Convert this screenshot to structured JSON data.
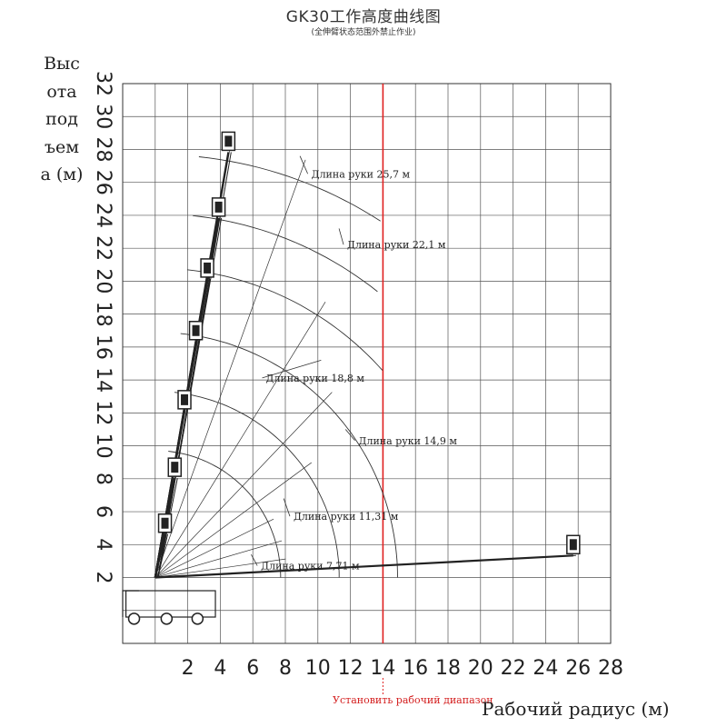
{
  "chart_data": {
    "type": "line",
    "title": "GK30工作高度曲线图",
    "subtitle": "(全伸臂状态范围外禁止作业)",
    "ylabel_lines": [
      "Выс",
      "ота",
      "под",
      "ъем",
      "а (м)"
    ],
    "xlabel": "Рабочий радиус (м)",
    "note": "Установить рабочий диапазон",
    "xlim": [
      -2,
      28
    ],
    "ylim": [
      -2,
      32
    ],
    "grid": true,
    "x_ticks": [
      "2",
      "4",
      "6",
      "8",
      "10",
      "12",
      "14",
      "16",
      "18",
      "20",
      "22",
      "24",
      "26",
      "28"
    ],
    "y_ticks": [
      "32",
      "30",
      "28",
      "26",
      "24",
      "22",
      "20",
      "18",
      "16",
      "14",
      "12",
      "10",
      "8",
      "6",
      "4",
      "2"
    ],
    "highlight_x": 14,
    "highlight_tick": "14",
    "arm_lengths": [
      {
        "label": "Длина руки 25,7 м",
        "radius": 25.7
      },
      {
        "label": "Длина руки 22,1 м",
        "radius": 22.1
      },
      {
        "label": "Длина руки 18,8 м",
        "radius": 18.8
      },
      {
        "label": "Длина руки 14,9 м",
        "radius": 14.9
      },
      {
        "label": "Длина руки 11,31 м",
        "radius": 11.31
      },
      {
        "label": "Длина руки 7,71 м",
        "radius": 7.71
      }
    ],
    "pivot": {
      "x": 0,
      "y": 2
    },
    "platform_positions": [
      {
        "x": 4.5,
        "y": 28.5
      },
      {
        "x": 3.9,
        "y": 24.5
      },
      {
        "x": 3.2,
        "y": 20.8
      },
      {
        "x": 2.5,
        "y": 17
      },
      {
        "x": 1.8,
        "y": 12.8
      },
      {
        "x": 1.2,
        "y": 8.7
      },
      {
        "x": 0.6,
        "y": 5.3
      },
      {
        "x": 25.7,
        "y": 4
      }
    ],
    "colors": {
      "grid": "#555555",
      "curve": "#333333",
      "highlight": "#e02020",
      "note": "#d42020"
    }
  }
}
